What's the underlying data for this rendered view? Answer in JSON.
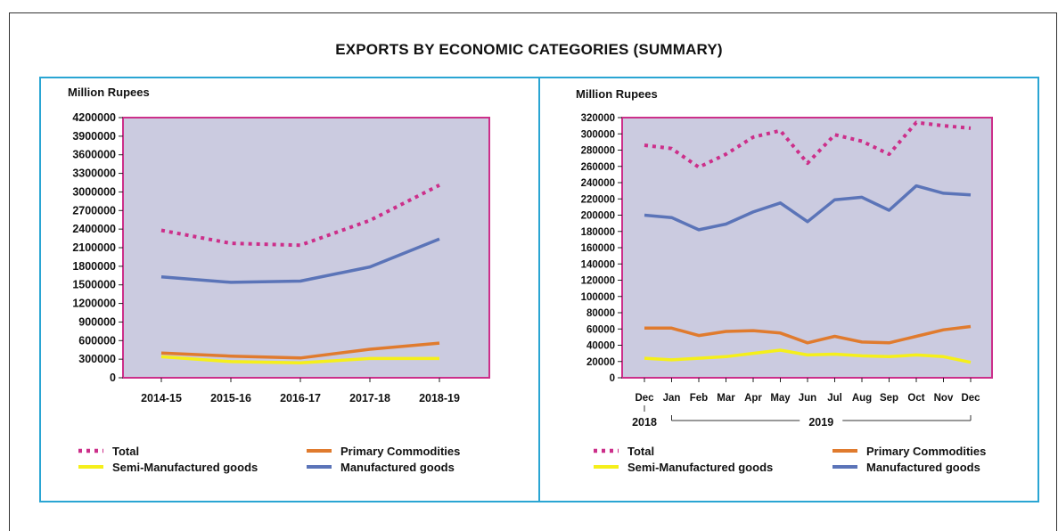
{
  "page_title": "EXPORTS BY ECONOMIC CATEGORIES (SUMMARY)",
  "colors": {
    "plot_bg": "#cbcbe0",
    "plot_border": "#cc2f8a",
    "panel_border": "#2aa5d3",
    "total": "#cc2f8a",
    "primary": "#e07b2e",
    "semi": "#f5ef1a",
    "manufactured": "#5b74b8"
  },
  "legend": {
    "total": "Total",
    "primary": "Primary Commodities",
    "semi": "Semi-Manufactured goods",
    "manufactured": "Manufactured goods"
  },
  "chart_data": [
    {
      "type": "line",
      "ylabel": "Million Rupees",
      "ylim": [
        0,
        4200000
      ],
      "yticks": [
        "0",
        "300000",
        "600000",
        "900000",
        "1200000",
        "1500000",
        "1800000",
        "2100000",
        "2400000",
        "2700000",
        "3000000",
        "3300000",
        "3600000",
        "3900000",
        "4200000"
      ],
      "categories": [
        "2014-15",
        "2015-16",
        "2016-17",
        "2017-18",
        "2018-19"
      ],
      "series": [
        {
          "name": "Total",
          "key": "total",
          "values": [
            2380000,
            2170000,
            2140000,
            2540000,
            3110000
          ]
        },
        {
          "name": "Manufactured goods",
          "key": "manufactured",
          "values": [
            1630000,
            1540000,
            1560000,
            1790000,
            2240000
          ]
        },
        {
          "name": "Primary Commodities",
          "key": "primary",
          "values": [
            400000,
            350000,
            320000,
            460000,
            560000
          ]
        },
        {
          "name": "Semi-Manufactured goods",
          "key": "semi",
          "values": [
            340000,
            260000,
            240000,
            310000,
            310000
          ]
        }
      ],
      "legend_position": "bottom",
      "grid": false
    },
    {
      "type": "line",
      "ylabel": "Million Rupees",
      "ylim": [
        0,
        320000
      ],
      "yticks": [
        "0",
        "20000",
        "40000",
        "60000",
        "80000",
        "100000",
        "120000",
        "140000",
        "160000",
        "180000",
        "200000",
        "220000",
        "240000",
        "260000",
        "280000",
        "300000",
        "320000"
      ],
      "categories": [
        "Dec",
        "Jan",
        "Feb",
        "Mar",
        "Apr",
        "May",
        "Jun",
        "Jul",
        "Aug",
        "Sep",
        "Oct",
        "Nov",
        "Dec"
      ],
      "year_labels": [
        "2018",
        "2019"
      ],
      "series": [
        {
          "name": "Total",
          "key": "total",
          "values": [
            286000,
            282000,
            259000,
            275000,
            296000,
            304000,
            264000,
            299000,
            291000,
            275000,
            314000,
            310000,
            307000
          ]
        },
        {
          "name": "Manufactured goods",
          "key": "manufactured",
          "values": [
            200000,
            197000,
            182000,
            189000,
            204000,
            215000,
            192000,
            219000,
            222000,
            206000,
            236000,
            227000,
            225000
          ]
        },
        {
          "name": "Primary Commodities",
          "key": "primary",
          "values": [
            61000,
            61000,
            52000,
            57000,
            58000,
            55000,
            43000,
            51000,
            44000,
            43000,
            51000,
            59000,
            63000
          ]
        },
        {
          "name": "Semi-Manufactured goods",
          "key": "semi",
          "values": [
            24000,
            22000,
            24000,
            26000,
            30000,
            34000,
            28000,
            29000,
            27000,
            26000,
            28000,
            26000,
            19000
          ]
        }
      ],
      "legend_position": "bottom",
      "grid": false
    }
  ]
}
